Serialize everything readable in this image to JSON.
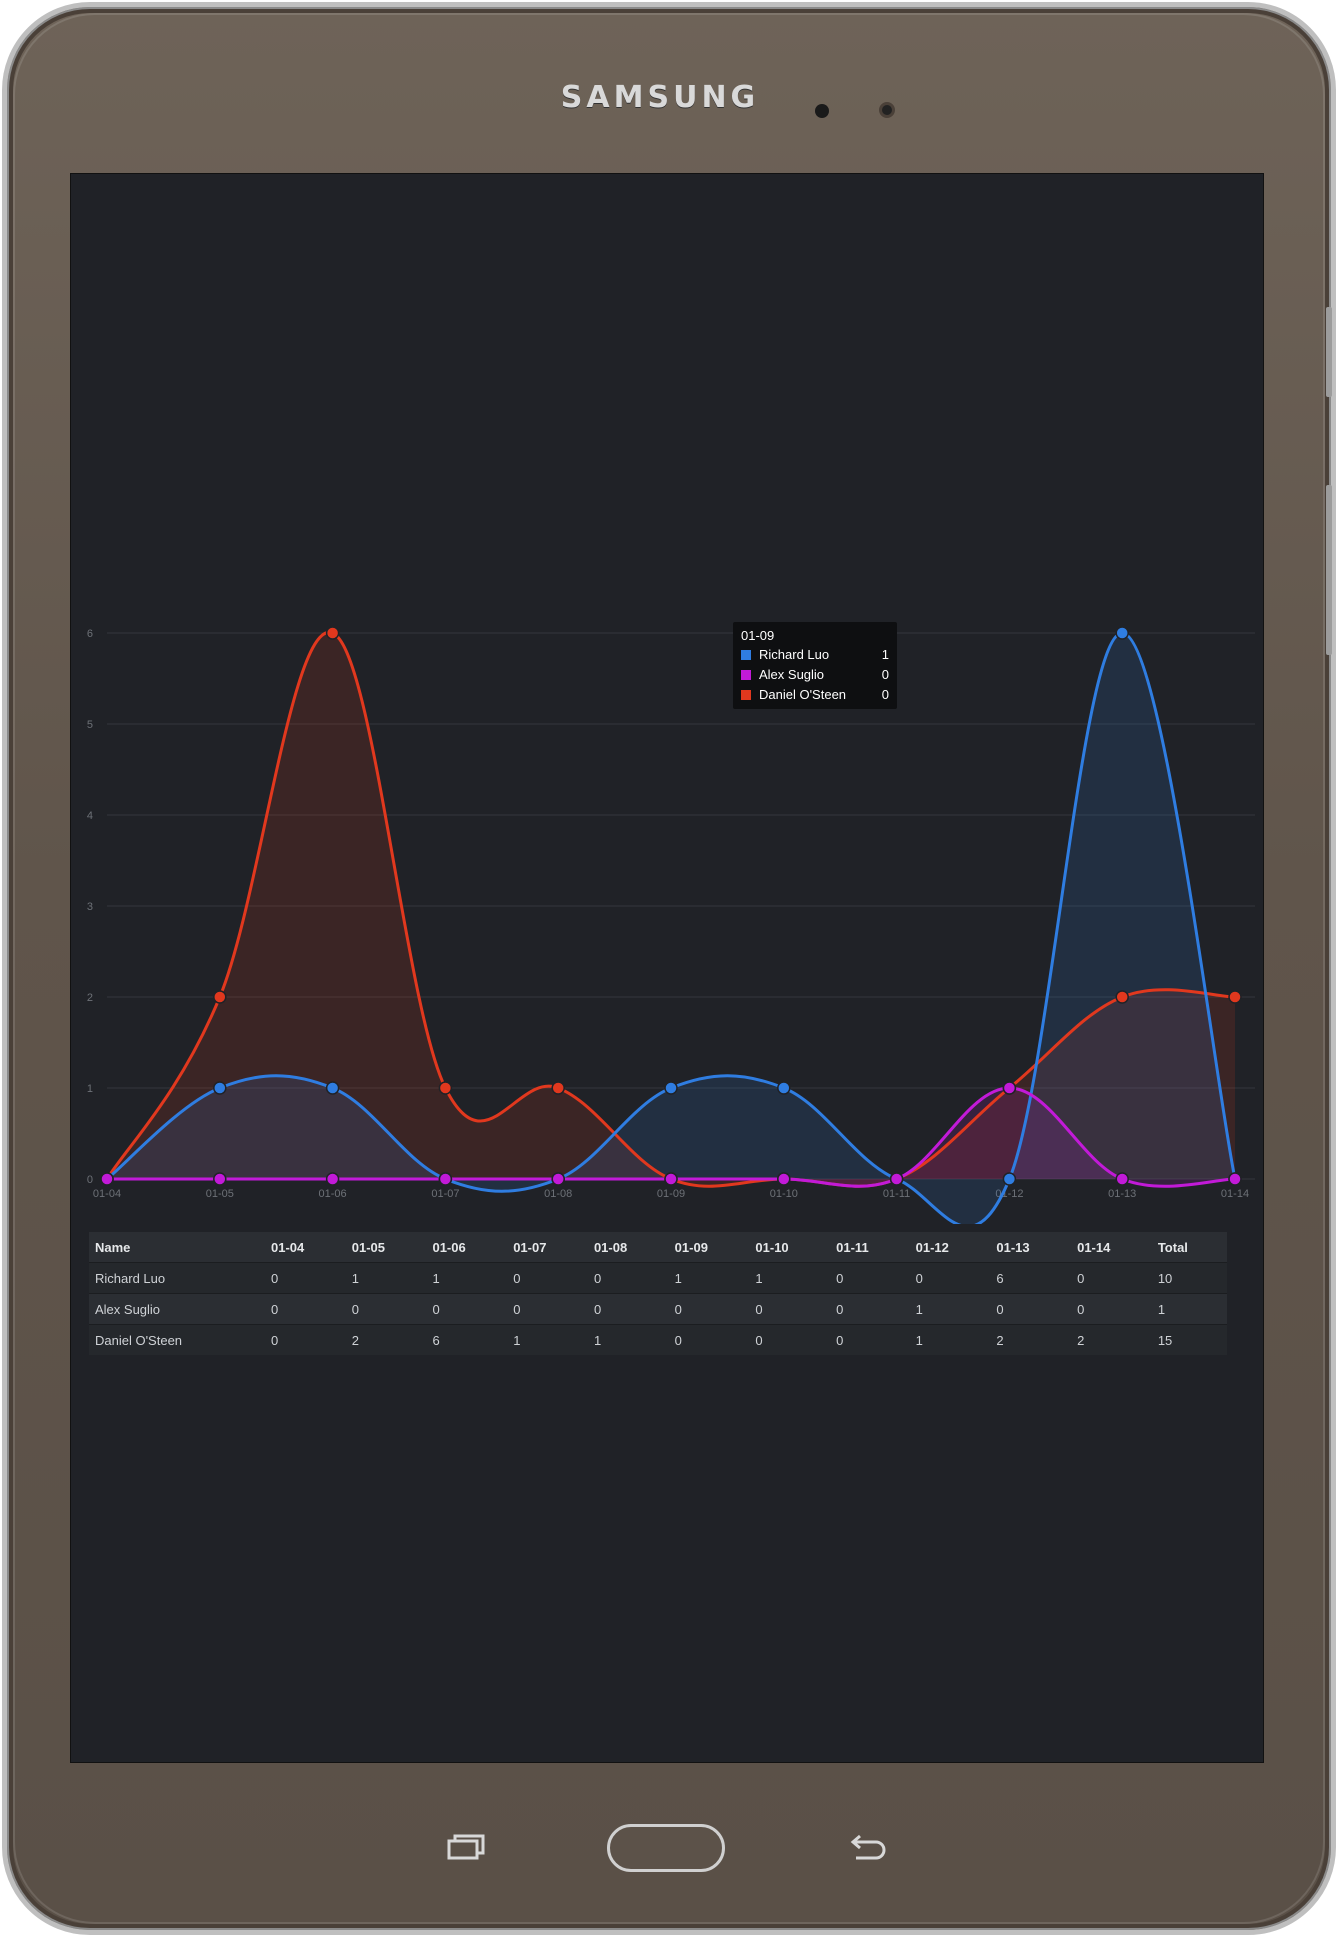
{
  "device": {
    "brand": "SAMSUNG"
  },
  "colors": {
    "richard": "#2f7de1",
    "alex": "#c21ad8",
    "daniel": "#e1381e",
    "background": "#202227",
    "grid": "#34373d"
  },
  "chart_data": {
    "type": "area",
    "x": [
      "01-04",
      "01-05",
      "01-06",
      "01-07",
      "01-08",
      "01-09",
      "01-10",
      "01-11",
      "01-12",
      "01-13",
      "01-14"
    ],
    "y_ticks": [
      "0",
      "1",
      "2",
      "3",
      "4",
      "5",
      "6"
    ],
    "ylim": [
      0,
      6
    ],
    "grid": true,
    "series": [
      {
        "name": "Richard Luo",
        "color": "#2f7de1",
        "values": [
          0,
          1,
          1,
          0,
          0,
          1,
          1,
          0,
          0,
          6,
          0
        ]
      },
      {
        "name": "Alex Suglio",
        "color": "#c21ad8",
        "values": [
          0,
          0,
          0,
          0,
          0,
          0,
          0,
          0,
          1,
          0,
          0
        ]
      },
      {
        "name": "Daniel O'Steen",
        "color": "#e1381e",
        "values": [
          0,
          2,
          6,
          1,
          1,
          0,
          0,
          0,
          1,
          2,
          2
        ]
      }
    ],
    "tooltip": {
      "title": "01-09",
      "rows": [
        {
          "name": "Richard Luo",
          "value": "1",
          "color": "#2f7de1"
        },
        {
          "name": "Alex Suglio",
          "value": "0",
          "color": "#c21ad8"
        },
        {
          "name": "Daniel O'Steen",
          "value": "0",
          "color": "#e1381e"
        }
      ]
    }
  },
  "table": {
    "headers": [
      "Name",
      "01-04",
      "01-05",
      "01-06",
      "01-07",
      "01-08",
      "01-09",
      "01-10",
      "01-11",
      "01-12",
      "01-13",
      "01-14",
      "Total"
    ],
    "rows": [
      [
        "Richard Luo",
        "0",
        "1",
        "1",
        "0",
        "0",
        "1",
        "1",
        "0",
        "0",
        "6",
        "0",
        "10"
      ],
      [
        "Alex Suglio",
        "0",
        "0",
        "0",
        "0",
        "0",
        "0",
        "0",
        "0",
        "1",
        "0",
        "0",
        "1"
      ],
      [
        "Daniel O'Steen",
        "0",
        "2",
        "6",
        "1",
        "1",
        "0",
        "0",
        "0",
        "1",
        "2",
        "2",
        "15"
      ]
    ]
  },
  "nav": {
    "recent_icon": "recent-apps-icon",
    "home_icon": "home-button",
    "back_icon": "back-arrow-icon"
  }
}
